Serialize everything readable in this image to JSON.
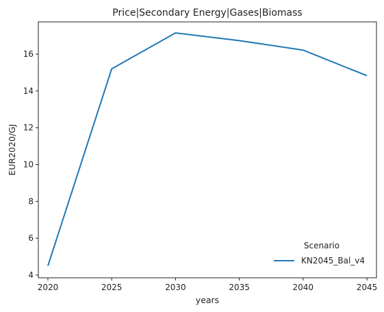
{
  "chart_data": {
    "type": "line",
    "title": "Price|Secondary Energy|Gases|Biomass",
    "xlabel": "years",
    "ylabel": "EUR2020/GJ",
    "x": [
      2020,
      2025,
      2030,
      2035,
      2040,
      2045
    ],
    "x_ticks": [
      "2020",
      "2025",
      "2030",
      "2035",
      "2040",
      "2045"
    ],
    "y_ticks": [
      "4",
      "6",
      "8",
      "10",
      "12",
      "14",
      "16"
    ],
    "xlim": [
      2019.25,
      2045.75
    ],
    "ylim": [
      3.85,
      17.75
    ],
    "grid": false,
    "legend": {
      "title": "Scenario",
      "placement": "lower-right"
    },
    "series": [
      {
        "name": "KN2045_Bal_v4",
        "color": "#1f77b4",
        "values": [
          4.5,
          15.2,
          17.15,
          16.73,
          16.22,
          14.83
        ]
      }
    ]
  }
}
